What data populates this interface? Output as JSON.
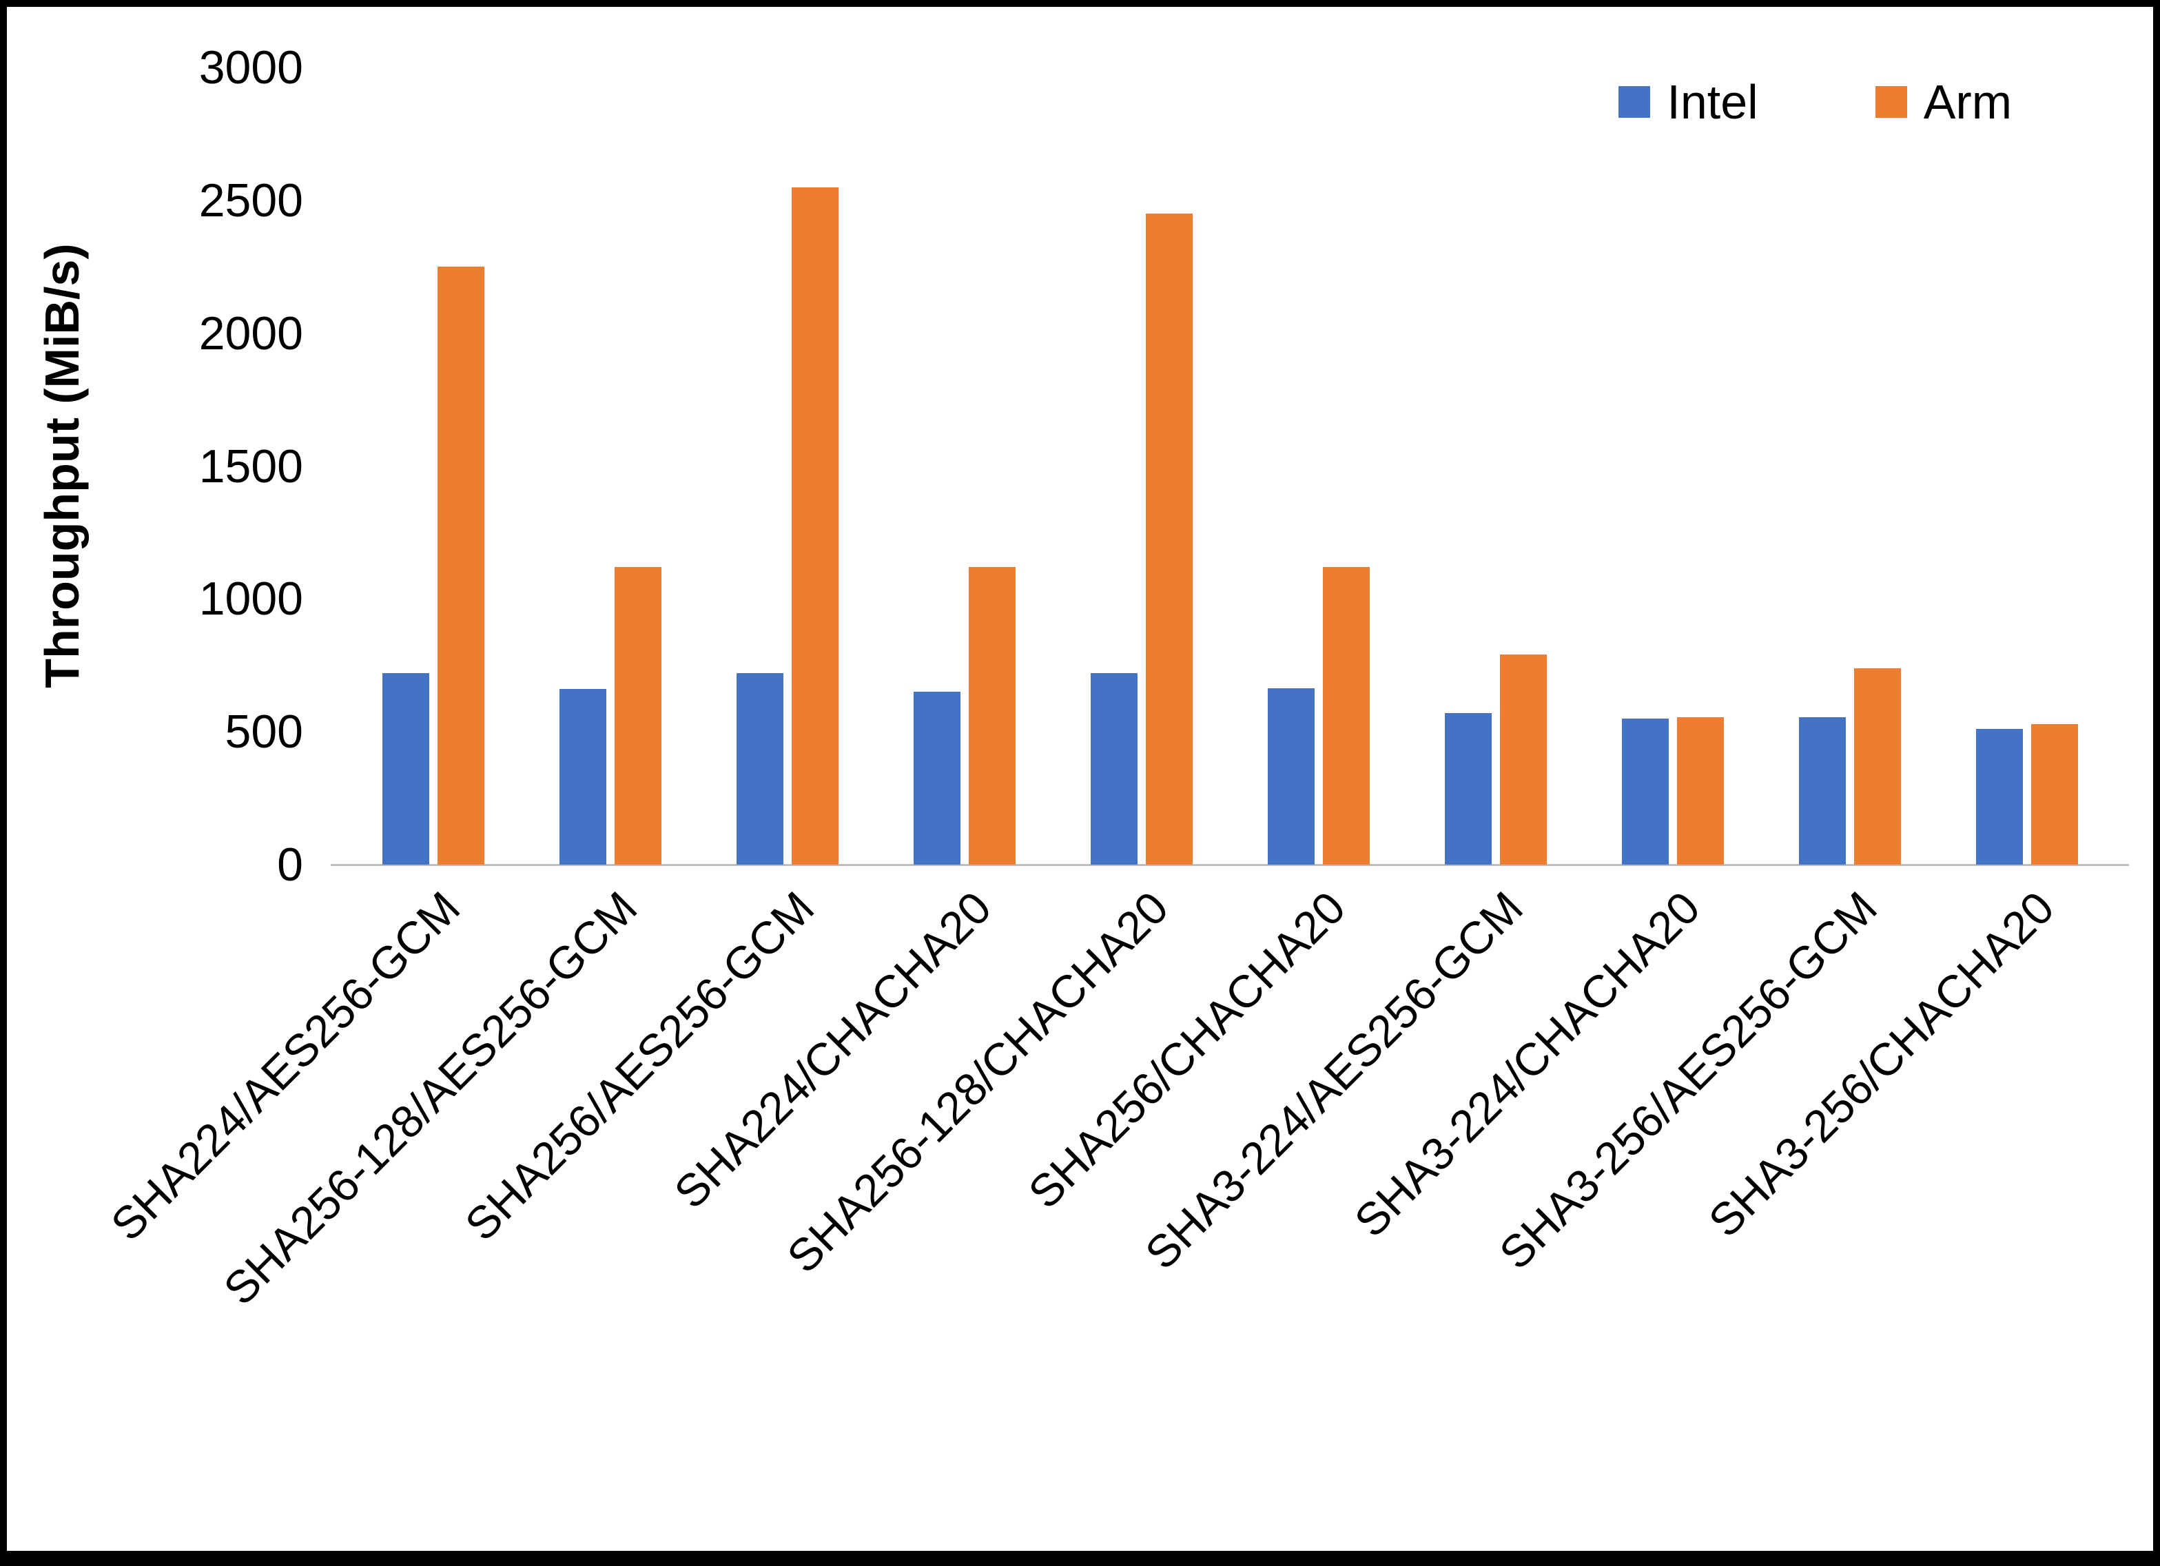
{
  "chart_data": {
    "type": "bar",
    "title": "",
    "xlabel": "",
    "ylabel": "Throughput (MiB/s)",
    "ylim": [
      0,
      3000
    ],
    "yticks": [
      0,
      500,
      1000,
      1500,
      2000,
      2500,
      3000
    ],
    "grid": false,
    "legend_position": "top-right",
    "categories": [
      "SHA224/AES256-GCM",
      "SHA256-128/AES256-GCM",
      "SHA256/AES256-GCM",
      "SHA224/CHACHA20",
      "SHA256-128/CHACHA20",
      "SHA256/CHACHA20",
      "SHA3-224/AES256-GCM",
      "SHA3-224/CHACHA20",
      "SHA3-256/AES256-GCM",
      "SHA3-256/CHACHA20"
    ],
    "series": [
      {
        "name": "Intel",
        "color": "#4472C4",
        "values": [
          720,
          660,
          720,
          650,
          720,
          665,
          570,
          550,
          555,
          510
        ]
      },
      {
        "name": "Arm",
        "color": "#ED7D31",
        "values": [
          2250,
          1120,
          2550,
          1120,
          2450,
          1120,
          790,
          555,
          740,
          530
        ]
      }
    ]
  }
}
